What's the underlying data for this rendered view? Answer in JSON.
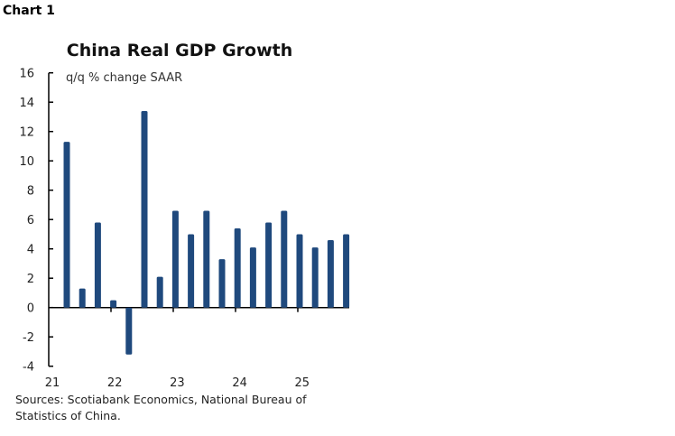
{
  "header": {
    "label": "Chart 1"
  },
  "chart_data": {
    "type": "bar",
    "title": "China Real GDP Growth",
    "subtitle": "q/q % change SAAR",
    "xlabel": "",
    "ylabel": "",
    "categories": [
      "21Q1",
      "21Q2",
      "21Q3",
      "21Q4",
      "22Q1",
      "22Q2",
      "22Q3",
      "22Q4",
      "23Q1",
      "23Q2",
      "23Q3",
      "23Q4",
      "24Q1",
      "24Q2",
      "24Q3",
      "24Q4",
      "25Q1",
      "25Q2",
      "25Q3"
    ],
    "values": [
      11.3,
      1.3,
      5.8,
      0.5,
      -3.2,
      13.4,
      2.1,
      6.6,
      5.0,
      6.6,
      3.3,
      5.4,
      4.1,
      5.8,
      6.6,
      5.0,
      4.1,
      4.6,
      5.0
    ],
    "x_tick_labels": [
      "21",
      "22",
      "23",
      "24",
      "25"
    ],
    "y_tick_labels": [
      "16",
      "14",
      "12",
      "10",
      "8",
      "6",
      "4",
      "2",
      "0",
      "-2",
      "-4"
    ],
    "ylim": [
      -4,
      16
    ],
    "grid": false,
    "bar_color": "#1f497d"
  },
  "source": "Sources: Scotiabank Economics, National Bureau of Statistics of China."
}
